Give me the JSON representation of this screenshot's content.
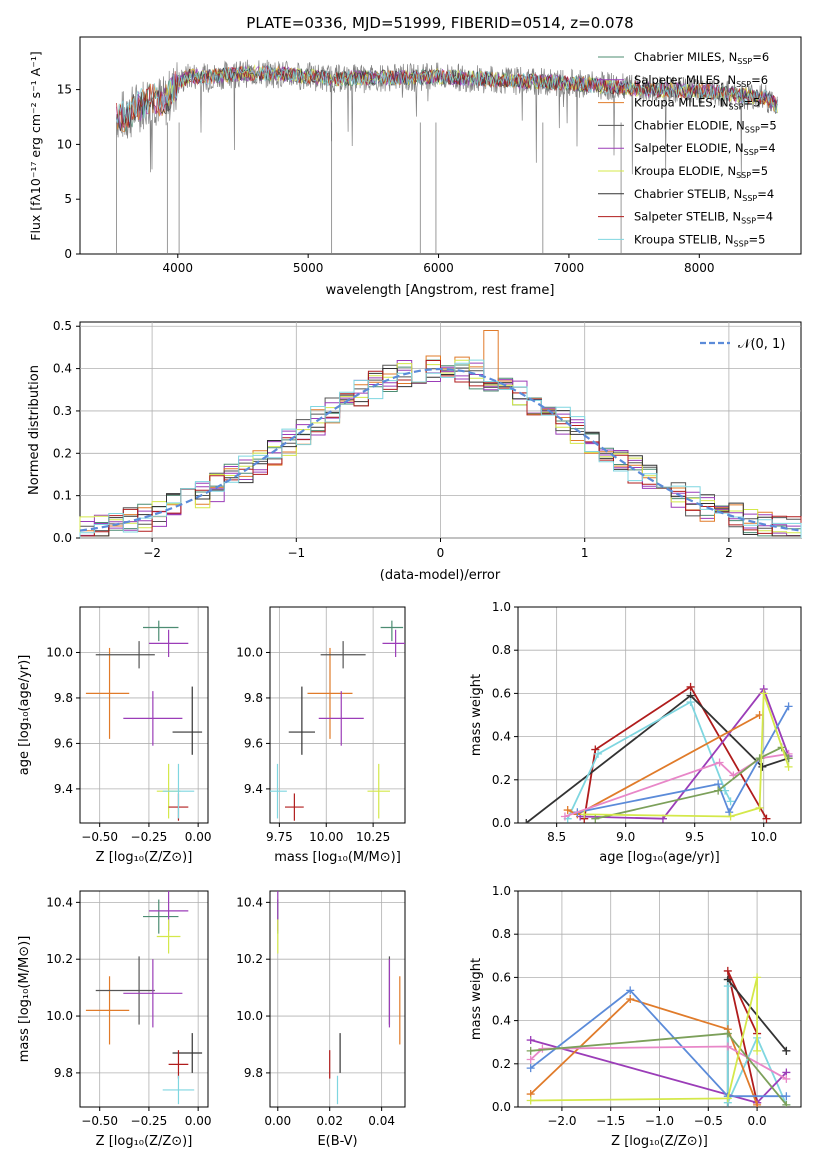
{
  "colors": {
    "chabrier_miles": "#4c8c72",
    "salpeter_miles": "#9b3db8",
    "kroupa_miles": "#e07b2a",
    "chabrier_elodie": "#555555",
    "salpeter_elodie": "#9b3db8",
    "kroupa_elodie": "#d4e84a",
    "chabrier_stelib": "#333333",
    "salpeter_stelib": "#b01c1c",
    "kroupa_stelib": "#7fd6e0",
    "blue": "#5b8bd9",
    "pink": "#e887c8",
    "olive": "#7ca05a",
    "normal": "#5b8bd9",
    "data": "#808080"
  },
  "chart_data": [
    {
      "id": "spectrum",
      "type": "line",
      "title": "PLATE=0336, MJD=51999, FIBERID=0514, z=0.078",
      "xlabel": "wavelength [Angstrom, rest frame]",
      "ylabel": "Flux [fλ10⁻¹⁷ erg cm⁻² s⁻¹ A⁻¹]",
      "xlim": [
        3250,
        8780
      ],
      "ylim": [
        0,
        19.8
      ],
      "xticks": [
        "4000",
        "5000",
        "6000",
        "7000",
        "8000"
      ],
      "yticks": [
        "0",
        "5",
        "10",
        "15"
      ],
      "legend": [
        {
          "label": "Chabrier MILES, N",
          "sub": "SSP",
          "suffix": "=6"
        },
        {
          "label": "Salpeter MILES, N",
          "sub": "SSP",
          "suffix": "=6"
        },
        {
          "label": "Kroupa MILES, N",
          "sub": "SSP",
          "suffix": "=5"
        },
        {
          "label": "Chabrier ELODIE, N",
          "sub": "SSP",
          "suffix": "=5"
        },
        {
          "label": "Salpeter ELODIE, N",
          "sub": "SSP",
          "suffix": "=4"
        },
        {
          "label": "Kroupa ELODIE, N",
          "sub": "SSP",
          "suffix": "=5"
        },
        {
          "label": "Chabrier STELIB, N",
          "sub": "SSP",
          "suffix": "=4"
        },
        {
          "label": "Salpeter STELIB, N",
          "sub": "SSP",
          "suffix": "=4"
        },
        {
          "label": "Kroupa STELIB, N",
          "sub": "SSP",
          "suffix": "=5"
        }
      ],
      "legend_placement": "right",
      "series_outline": [
        [
          3520,
          0
        ],
        [
          3530,
          12.8
        ],
        [
          3600,
          12.5
        ],
        [
          3700,
          13.5
        ],
        [
          3800,
          14.2
        ],
        [
          3900,
          13.8
        ],
        [
          4000,
          15.6
        ],
        [
          4100,
          16.3
        ],
        [
          4200,
          16.1
        ],
        [
          4400,
          16.4
        ],
        [
          4600,
          16.5
        ],
        [
          4800,
          16.4
        ],
        [
          5000,
          16.2
        ],
        [
          5200,
          16.0
        ],
        [
          5500,
          16.1
        ],
        [
          5800,
          16.1
        ],
        [
          6000,
          16.2
        ],
        [
          6300,
          16.0
        ],
        [
          6600,
          15.8
        ],
        [
          7000,
          15.6
        ],
        [
          7200,
          15.4
        ],
        [
          7400,
          15.2
        ],
        [
          7600,
          15.0
        ],
        [
          8000,
          14.9
        ],
        [
          8300,
          14.5
        ],
        [
          8500,
          14.3
        ],
        [
          8600,
          13.5
        ]
      ]
    },
    {
      "id": "residuals",
      "type": "histogram",
      "xlabel": "(data-model)/error",
      "ylabel": "Normed distribution",
      "xlim": [
        -2.5,
        2.5
      ],
      "ylim": [
        0,
        0.51
      ],
      "xticks": [
        "−2",
        "−1",
        "0",
        "1",
        "2"
      ],
      "yticks": [
        "0.0",
        "0.1",
        "0.2",
        "0.3",
        "0.4",
        "0.5"
      ],
      "legend": "𝒩(0, 1)",
      "legend_placement": "top-right",
      "bin_width": 0.1,
      "peak_bin": 0.3,
      "peak_value": 0.49
    },
    {
      "id": "age_vs_Z",
      "type": "scatter",
      "xlabel": "Z [log₁₀(Z/Z⊙)]",
      "ylabel": "age  [log₁₀(age/yr)]",
      "xlim": [
        -0.6,
        0.05
      ],
      "ylim": [
        9.25,
        10.2
      ],
      "xticks": [
        "−0.50",
        "−0.25",
        "0.00"
      ],
      "yticks": [
        "9.4",
        "9.6",
        "9.8",
        "10.0"
      ]
    },
    {
      "id": "age_vs_mass",
      "type": "scatter",
      "xlabel": "mass [log₁₀(M/M⊙)]",
      "xlim": [
        9.7,
        10.42
      ],
      "ylim": [
        9.25,
        10.2
      ],
      "xticks": [
        "9.75",
        "10.00",
        "10.25"
      ],
      "yticks": [
        "9.4",
        "9.6",
        "9.8",
        "10.0"
      ]
    },
    {
      "id": "weight_vs_age",
      "type": "line",
      "xlabel": "age  [log₁₀(age/yr)]",
      "ylabel": "mass weight",
      "xlim": [
        8.22,
        10.27
      ],
      "ylim": [
        0,
        1.0
      ],
      "xticks": [
        "8.5",
        "9.0",
        "9.5",
        "10.0"
      ],
      "yticks": [
        "0.0",
        "0.2",
        "0.4",
        "0.6",
        "0.8",
        "1.0"
      ]
    },
    {
      "id": "mass_vs_Z",
      "type": "scatter",
      "xlabel": "Z [log₁₀(Z/Z⊙)]",
      "ylabel": "mass [log₁₀(M/M⊙)]",
      "xlim": [
        -0.6,
        0.05
      ],
      "ylim": [
        9.68,
        10.44
      ],
      "xticks": [
        "−0.50",
        "−0.25",
        "0.00"
      ],
      "yticks": [
        "9.8",
        "10.0",
        "10.2",
        "10.4"
      ]
    },
    {
      "id": "mass_vs_ebv",
      "type": "scatter",
      "xlabel": "E(B-V)",
      "xlim": [
        -0.003,
        0.049
      ],
      "ylim": [
        9.68,
        10.44
      ],
      "xticks": [
        "0.00",
        "0.02",
        "0.04"
      ],
      "yticks": [
        "9.8",
        "10.0",
        "10.2",
        "10.4"
      ]
    },
    {
      "id": "weight_vs_Z",
      "type": "line",
      "xlabel": "Z [log₁₀(Z/Z⊙)]",
      "ylabel": "mass weight",
      "xlim": [
        -2.45,
        0.45
      ],
      "ylim": [
        0,
        1.0
      ],
      "xticks": [
        "−2.0",
        "−1.5",
        "−1.0",
        "−0.5",
        "0.0"
      ],
      "yticks": [
        "0.0",
        "0.2",
        "0.4",
        "0.6",
        "0.8",
        "1.0"
      ]
    }
  ],
  "models": [
    {
      "key": "chabrier_miles",
      "Z": -0.2,
      "Zerr": [
        0.08,
        0.1
      ],
      "age": 10.11,
      "ageErr": [
        0.06,
        0.03
      ],
      "mass": 10.35,
      "massErr": [
        0.06,
        0.06
      ],
      "ebv": 0.0,
      "ebvErr": 0.0
    },
    {
      "key": "salpeter_miles",
      "Z": -0.15,
      "Zerr": [
        0.1,
        0.1
      ],
      "age": 10.04,
      "ageErr": [
        0.06,
        0.06
      ],
      "mass": 10.37,
      "massErr": [
        0.07,
        0.07
      ],
      "ebv": 0.0,
      "ebvErr": 0.0
    },
    {
      "key": "kroupa_miles",
      "Z": -0.45,
      "Zerr": [
        0.12,
        0.1
      ],
      "age": 9.82,
      "ageErr": [
        0.2,
        0.2
      ],
      "mass": 10.02,
      "massErr": [
        0.12,
        0.12
      ],
      "ebv": 0.047,
      "ebvErr": 0.0
    },
    {
      "key": "chabrier_elodie",
      "Z": -0.3,
      "Zerr": [
        0.22,
        0.08
      ],
      "age": 9.99,
      "ageErr": [
        0.06,
        0.06
      ],
      "mass": 10.09,
      "massErr": [
        0.12,
        0.12
      ],
      "ebv": 0.043,
      "ebvErr": 0.0
    },
    {
      "key": "salpeter_elodie",
      "Z": -0.23,
      "Zerr": [
        0.15,
        0.15
      ],
      "age": 9.71,
      "ageErr": [
        0.12,
        0.12
      ],
      "mass": 10.08,
      "massErr": [
        0.12,
        0.12
      ],
      "ebv": 0.043,
      "ebvErr": 0.0
    },
    {
      "key": "kroupa_elodie",
      "Z": -0.15,
      "Zerr": [
        0.06,
        0.06
      ],
      "age": 9.39,
      "ageErr": [
        0.12,
        0.12
      ],
      "mass": 10.28,
      "massErr": [
        0.06,
        0.06
      ],
      "ebv": 0.0,
      "ebvErr": 0.0
    },
    {
      "key": "chabrier_stelib",
      "Z": -0.03,
      "Zerr": [
        0.1,
        0.05
      ],
      "age": 9.65,
      "ageErr": [
        0.1,
        0.2
      ],
      "mass": 9.87,
      "massErr": [
        0.07,
        0.07
      ],
      "ebv": 0.024,
      "ebvErr": 0.0
    },
    {
      "key": "salpeter_stelib",
      "Z": -0.1,
      "Zerr": [
        0.05,
        0.05
      ],
      "age": 9.32,
      "ageErr": [
        0.06,
        0.06
      ],
      "mass": 9.83,
      "massErr": [
        0.05,
        0.05
      ],
      "ebv": 0.02,
      "ebvErr": 0.0
    },
    {
      "key": "kroupa_stelib",
      "Z": -0.1,
      "Zerr": [
        0.08,
        0.08
      ],
      "age": 9.39,
      "ageErr": [
        0.12,
        0.12
      ],
      "mass": 9.74,
      "massErr": [
        0.05,
        0.05
      ],
      "ebv": 0.023,
      "ebvErr": 0.0
    }
  ],
  "weight_lines": [
    {
      "key": "salpeter_stelib",
      "age": [
        8.7,
        8.78,
        9.47,
        10.02
      ],
      "wt": [
        0.02,
        0.34,
        0.63,
        0.02
      ],
      "Z": [
        0.0,
        -0.3,
        0.0,
        0.0
      ],
      "zwt": [
        0.34,
        0.63,
        0.02,
        0.02
      ]
    },
    {
      "key": "chabrier_stelib",
      "age": [
        8.28,
        9.47,
        9.99,
        10.18
      ],
      "wt": [
        0.0,
        0.59,
        0.26,
        0.3
      ],
      "Z": [
        -0.3,
        -0.3,
        0.3,
        0.3
      ],
      "zwt": [
        0.0,
        0.59,
        0.26,
        0.26
      ]
    },
    {
      "key": "kroupa_stelib",
      "age": [
        8.58,
        8.8,
        9.47,
        9.72,
        9.76
      ],
      "wt": [
        0.02,
        0.32,
        0.56,
        0.15,
        0.1
      ],
      "Z": [
        -0.3,
        -0.3,
        0.0,
        0.3
      ],
      "zwt": [
        0.56,
        0.02,
        0.32,
        0.01
      ]
    },
    {
      "key": "salpeter_miles",
      "age": [
        8.67,
        9.27,
        10.0,
        10.18
      ],
      "wt": [
        0.03,
        0.02,
        0.62,
        0.31
      ],
      "Z": [
        -2.32,
        0.0,
        0.3
      ],
      "zwt": [
        0.31,
        0.02,
        0.16
      ]
    },
    {
      "key": "kroupa_miles",
      "age": [
        8.58,
        8.65,
        9.97
      ],
      "wt": [
        0.06,
        0.04,
        0.5
      ],
      "Z": [
        -2.32,
        -1.3,
        -0.3,
        0.0
      ],
      "zwt": [
        0.06,
        0.5,
        0.36,
        0.01
      ]
    },
    {
      "key": "blue",
      "age": [
        8.65,
        9.67,
        9.75,
        10.18
      ],
      "wt": [
        0.05,
        0.18,
        0.05,
        0.54
      ],
      "Z": [
        -2.32,
        -1.3,
        -0.3,
        0.3
      ],
      "zwt": [
        0.18,
        0.54,
        0.05,
        0.05
      ]
    },
    {
      "key": "pink",
      "age": [
        8.56,
        9.68,
        9.78,
        9.98,
        10.18
      ],
      "wt": [
        0.03,
        0.28,
        0.22,
        0.3,
        0.32
      ],
      "Z": [
        -2.32,
        -2.2,
        -0.3,
        0.3
      ],
      "zwt": [
        0.22,
        0.27,
        0.28,
        0.13
      ]
    },
    {
      "key": "olive",
      "age": [
        8.78,
        9.67,
        9.97,
        10.13,
        10.18
      ],
      "wt": [
        0.02,
        0.15,
        0.3,
        0.35,
        0.3
      ],
      "Z": [
        -2.32,
        -0.3,
        0.3
      ],
      "zwt": [
        0.26,
        0.34,
        0.01
      ]
    },
    {
      "key": "kroupa_elodie",
      "age": [
        8.7,
        9.76,
        9.97,
        10.0,
        10.18
      ],
      "wt": [
        0.04,
        0.03,
        0.07,
        0.6,
        0.26
      ],
      "Z": [
        -2.32,
        -0.3,
        0.0,
        0.0
      ],
      "zwt": [
        0.03,
        0.04,
        0.6,
        0.26
      ]
    }
  ]
}
